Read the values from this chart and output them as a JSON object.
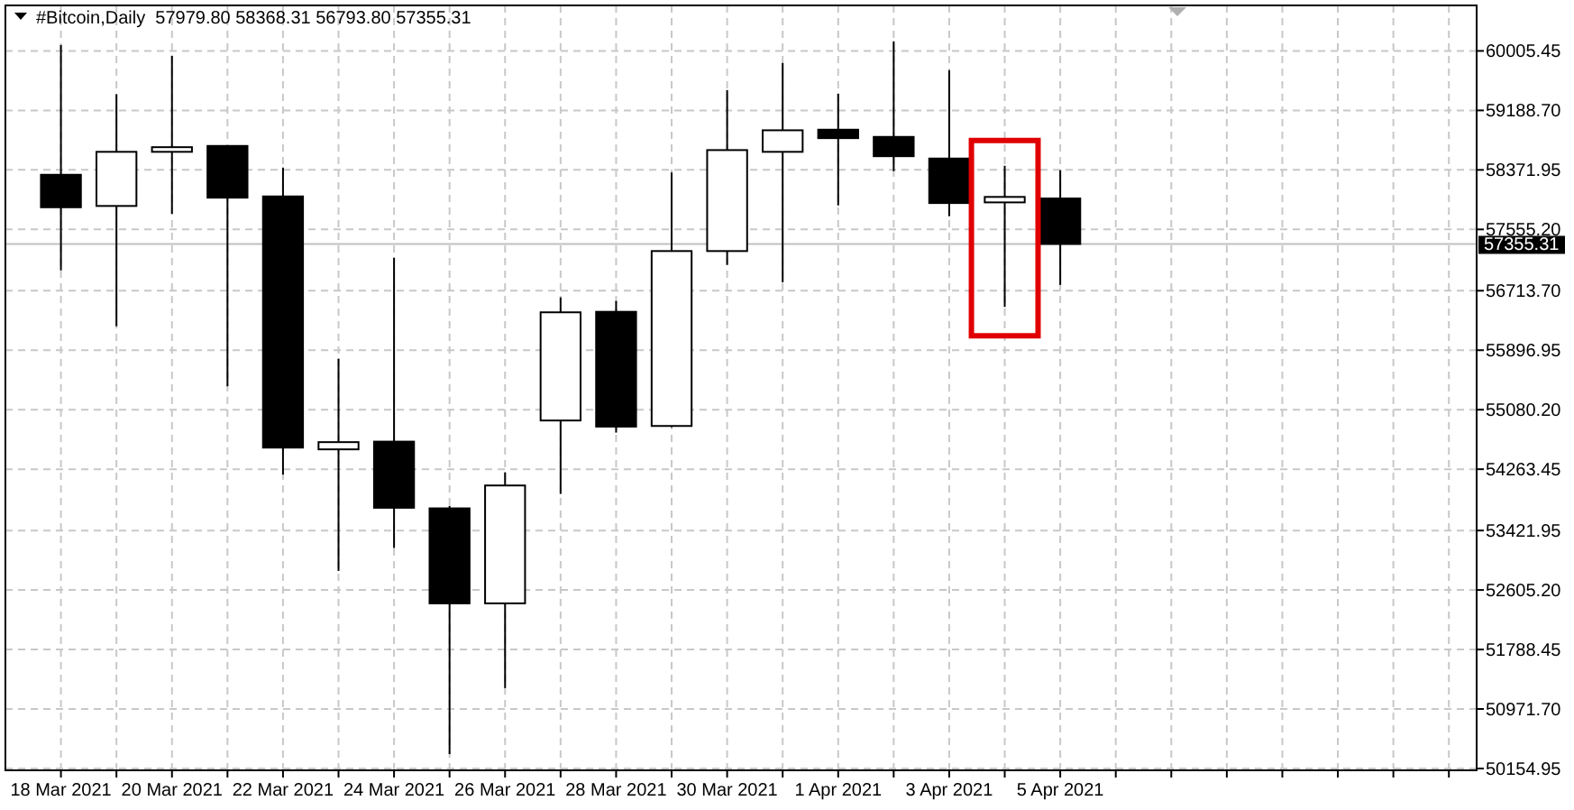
{
  "chart_data": {
    "type": "candlestick",
    "title": "#Bitcoin,Daily  57979.80 58368.31 56793.80 57355.31",
    "x": [
      "2021-03-18",
      "2021-03-19",
      "2021-03-20",
      "2021-03-21",
      "2021-03-22",
      "2021-03-23",
      "2021-03-24",
      "2021-03-25",
      "2021-03-26",
      "2021-03-27",
      "2021-03-28",
      "2021-03-29",
      "2021-03-30",
      "2021-03-31",
      "2021-04-01",
      "2021-04-02",
      "2021-04-03",
      "2021-04-04",
      "2021-04-05"
    ],
    "ohlc": [
      [
        58305,
        60087,
        56993,
        57859
      ],
      [
        57877,
        59411,
        56226,
        58620
      ],
      [
        58620,
        59939,
        57768,
        58684
      ],
      [
        58701,
        58701,
        55402,
        57991
      ],
      [
        58008,
        58404,
        54189,
        54560
      ],
      [
        54536,
        55781,
        52867,
        54635
      ],
      [
        54642,
        57167,
        53182,
        53734
      ],
      [
        53726,
        53760,
        50353,
        52422
      ],
      [
        52422,
        54221,
        51259,
        54040
      ],
      [
        54932,
        56622,
        53924,
        56417
      ],
      [
        56424,
        56573,
        54766,
        54848
      ],
      [
        54857,
        58337,
        54840,
        57258
      ],
      [
        57258,
        59468,
        57068,
        58644
      ],
      [
        58620,
        59840,
        56828,
        58916
      ],
      [
        58924,
        59419,
        57884,
        58808
      ],
      [
        58825,
        60137,
        58355,
        58560
      ],
      [
        58528,
        59741,
        57736,
        57917
      ],
      [
        57926,
        58429,
        56491,
        58001
      ],
      [
        57979.8,
        58368.31,
        56793.8,
        57355.31
      ]
    ],
    "xlim": [
      "2021-03-17",
      "2021-04-12T12:00"
    ],
    "xticks": [
      {
        "value": "2021-03-18",
        "label": "18 Mar 2021"
      },
      {
        "value": "2021-03-19",
        "label": null
      },
      {
        "value": "2021-03-20",
        "label": "20 Mar 2021"
      },
      {
        "value": "2021-03-21",
        "label": null
      },
      {
        "value": "2021-03-22",
        "label": "22 Mar 2021"
      },
      {
        "value": "2021-03-23",
        "label": null
      },
      {
        "value": "2021-03-24",
        "label": "24 Mar 2021"
      },
      {
        "value": "2021-03-25",
        "label": null
      },
      {
        "value": "2021-03-26",
        "label": "26 Mar 2021"
      },
      {
        "value": "2021-03-27",
        "label": null
      },
      {
        "value": "2021-03-28",
        "label": "28 Mar 2021"
      },
      {
        "value": "2021-03-29",
        "label": null
      },
      {
        "value": "2021-03-30",
        "label": "30 Mar 2021"
      },
      {
        "value": "2021-03-31",
        "label": null
      },
      {
        "value": "2021-04-01",
        "label": "1 Apr 2021"
      },
      {
        "value": "2021-04-02",
        "label": null
      },
      {
        "value": "2021-04-03",
        "label": "3 Apr 2021"
      },
      {
        "value": "2021-04-04",
        "label": null
      },
      {
        "value": "2021-04-05",
        "label": "5 Apr 2021"
      },
      {
        "value": "2021-04-06",
        "label": null
      },
      {
        "value": "2021-04-07",
        "label": null
      },
      {
        "value": "2021-04-08",
        "label": null
      },
      {
        "value": "2021-04-09",
        "label": null
      },
      {
        "value": "2021-04-10",
        "label": null
      },
      {
        "value": "2021-04-11",
        "label": null
      },
      {
        "value": "2021-04-12",
        "label": null
      }
    ],
    "ylim": [
      50130,
      60630
    ],
    "yticks": [
      {
        "value": 60005.45,
        "label": "60005.45"
      },
      {
        "value": 59188.7,
        "label": "59188.70"
      },
      {
        "value": 58371.95,
        "label": "58371.95"
      },
      {
        "value": 57555.2,
        "label": "57555.20"
      },
      {
        "value": 56713.7,
        "label": "56713.70"
      },
      {
        "value": 55896.95,
        "label": "55896.95"
      },
      {
        "value": 55080.2,
        "label": "55080.20"
      },
      {
        "value": 54263.45,
        "label": "54263.45"
      },
      {
        "value": 53421.95,
        "label": "53421.95"
      },
      {
        "value": 52605.2,
        "label": "52605.20"
      },
      {
        "value": 51788.45,
        "label": "51788.45"
      },
      {
        "value": 50971.7,
        "label": "50971.70"
      },
      {
        "value": 50154.95,
        "label": "50154.95"
      }
    ],
    "ref_lines": [
      {
        "axis": "y",
        "value": 57355.31,
        "label": "57355.31",
        "color": "#c0c0c0"
      }
    ],
    "grid": true
  }
}
